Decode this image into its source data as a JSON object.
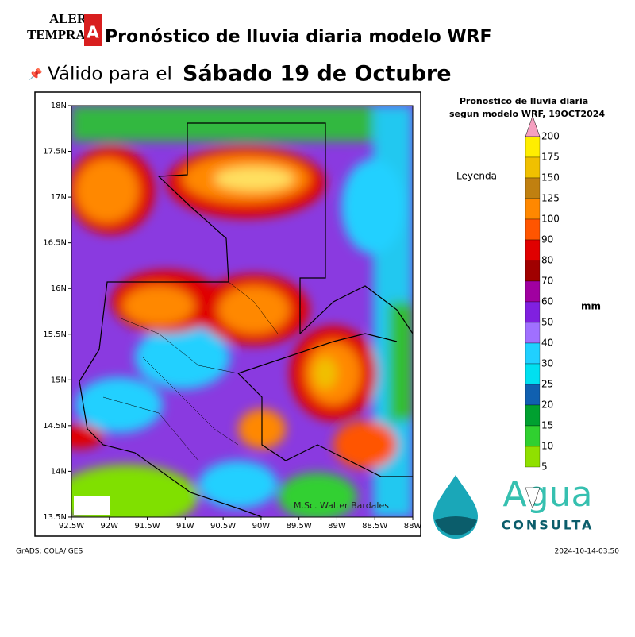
{
  "header": {
    "logo": {
      "line1": "ALERT",
      "line2": "TEMPRAN",
      "badge": "A"
    },
    "title": "Pronóstico de lluvia diaria modelo WRF",
    "valid_prefix": "Válido para el",
    "valid_date": "Sábado 19 de Octubre"
  },
  "map": {
    "lat_labels": [
      "18N",
      "17.5N",
      "17N",
      "16.5N",
      "16N",
      "15.5N",
      "15N",
      "14.5N",
      "14N",
      "13.5N"
    ],
    "lon_labels": [
      "92.5W",
      "92W",
      "91.5W",
      "91W",
      "90.5W",
      "90W",
      "89.5W",
      "89W",
      "88.5W",
      "88W"
    ],
    "credit": "M.Sc. Walter Bardales"
  },
  "legend": {
    "title1": "Pronostico de lluvia diaria",
    "title2": "segun modelo WRF,  19OCT2024",
    "heading": "Leyenda",
    "unit": "mm",
    "labels": [
      "200",
      "175",
      "150",
      "125",
      "100",
      "90",
      "80",
      "70",
      "60",
      "50",
      "40",
      "30",
      "25",
      "20",
      "15",
      "10",
      "5"
    ],
    "colors": [
      "#f5a0c0",
      "#ffee00",
      "#f0c000",
      "#c08010",
      "#ff8800",
      "#ff5500",
      "#e00000",
      "#a00000",
      "#a000a0",
      "#8020e0",
      "#a070ff",
      "#20d0ff",
      "#00e0f0",
      "#1060b0",
      "#00a030",
      "#30d030",
      "#90e000",
      "#ffffff"
    ]
  },
  "footer": {
    "left": "GrADS: COLA/IGES",
    "right": "2024-10-14-03:50"
  },
  "brand": {
    "name": "Agua",
    "tag": "CONSULTA"
  }
}
